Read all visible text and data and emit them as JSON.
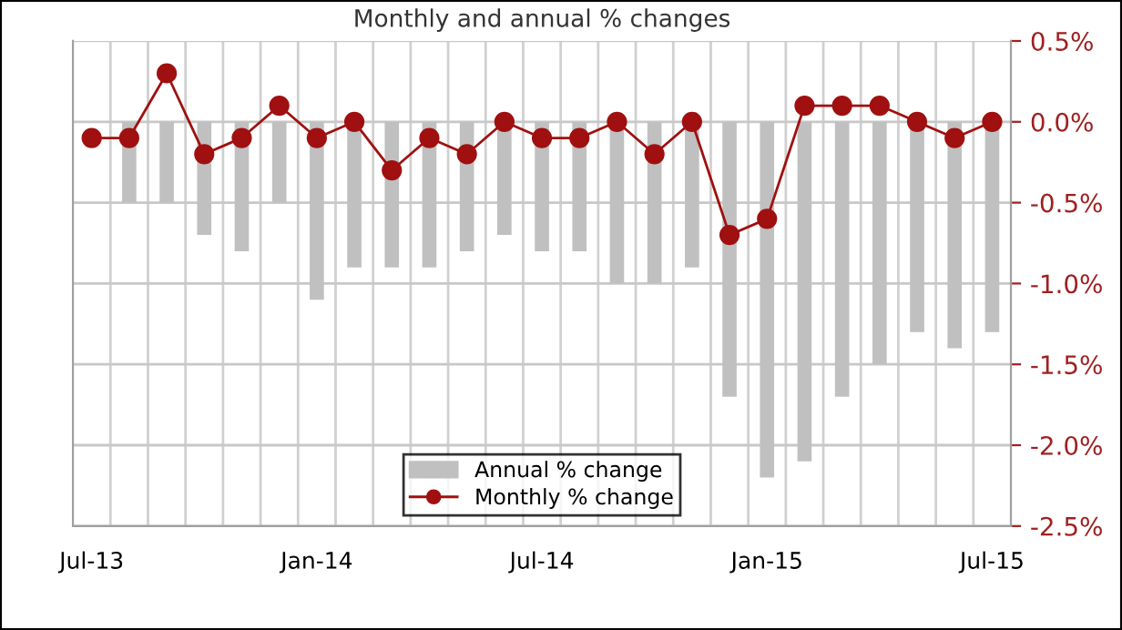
{
  "chart_data": {
    "type": "bar",
    "title": "Monthly and annual % changes",
    "categories": [
      "Jul-13",
      null,
      null,
      null,
      null,
      null,
      "Jan-14",
      null,
      null,
      null,
      null,
      null,
      "Jul-14",
      null,
      null,
      null,
      null,
      null,
      "Jan-15",
      null,
      null,
      null,
      null,
      null,
      "Jul-15"
    ],
    "series": [
      {
        "name": "Annual % change",
        "color": "#c0c0c0",
        "values": [
          0.0,
          -0.5,
          -0.5,
          -0.7,
          -0.8,
          -0.5,
          -1.1,
          -0.9,
          -0.9,
          -0.9,
          -0.8,
          -0.7,
          -0.8,
          -0.8,
          -1.0,
          -1.0,
          -0.9,
          -1.7,
          -2.2,
          -2.1,
          -1.7,
          -1.5,
          -1.3,
          -1.4,
          -1.3
        ]
      },
      {
        "name": "Monthly % change",
        "type": "line",
        "color": "#a01010",
        "marker": "circle",
        "values": [
          -0.1,
          -0.1,
          0.3,
          -0.2,
          -0.1,
          0.1,
          -0.1,
          0.0,
          -0.3,
          -0.1,
          -0.2,
          0.0,
          -0.1,
          -0.1,
          0.0,
          -0.2,
          0.0,
          -0.7,
          -0.6,
          0.1,
          0.1,
          0.1,
          0.0,
          -0.1,
          0.0
        ]
      }
    ],
    "ylim": [
      -2.5,
      0.5
    ],
    "yticks": [
      {
        "value": 0.5,
        "label": "0.5%"
      },
      {
        "value": 0.0,
        "label": "0.0%"
      },
      {
        "value": -0.5,
        "label": "-0.5%"
      },
      {
        "value": -1.0,
        "label": "-1.0%"
      },
      {
        "value": -1.5,
        "label": "-1.5%"
      },
      {
        "value": -2.0,
        "label": "-2.0%"
      },
      {
        "value": -2.5,
        "label": "-2.5%"
      }
    ],
    "grid": true,
    "legend": "bottom"
  }
}
